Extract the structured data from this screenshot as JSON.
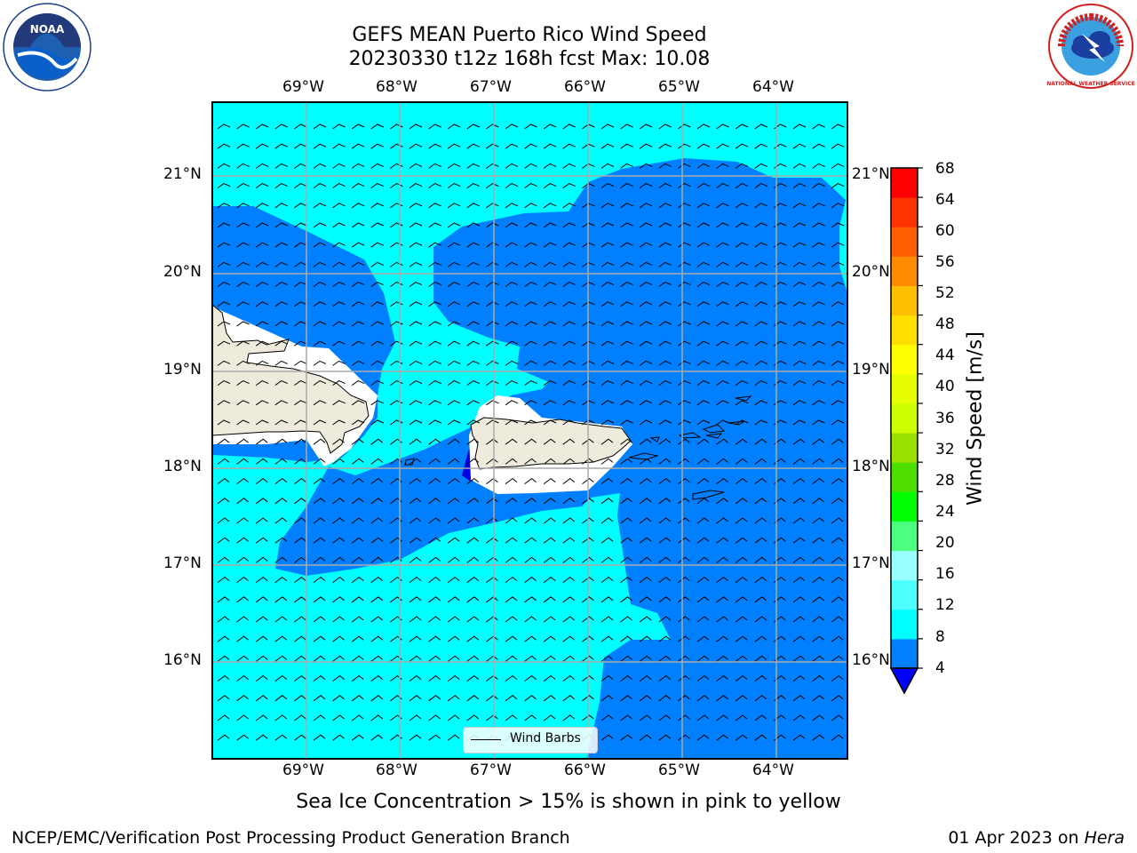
{
  "title": {
    "line1": "GEFS MEAN Puerto Rico Wind Speed",
    "line2": "20230330 t12z 168h fcst   Max: 10.08"
  },
  "logos": {
    "left": {
      "icon": "noaa-logo",
      "text": "NOAA"
    },
    "right": {
      "icon": "nws-logo",
      "text": "NATIONAL WEATHER SERVICE"
    }
  },
  "map": {
    "lon_ticks": [
      "69°W",
      "68°W",
      "67°W",
      "66°W",
      "65°W",
      "64°W"
    ],
    "lat_ticks": [
      "21°N",
      "20°N",
      "19°N",
      "18°N",
      "17°N",
      "16°N"
    ],
    "legend_label": "Wind Barbs",
    "colors": {
      "land": "#efebdc",
      "shade_4_8": "#0080ff",
      "shade_8_12": "#00ffff",
      "shade_below_4": "#0000e6"
    }
  },
  "colorbar": {
    "label": "Wind Speed [m/s]",
    "ticks": [
      "68",
      "64",
      "60",
      "56",
      "52",
      "48",
      "44",
      "40",
      "36",
      "32",
      "28",
      "24",
      "20",
      "16",
      "12",
      "8",
      "4"
    ],
    "colors_bottom_to_top": [
      "#0080ff",
      "#00ffff",
      "#4dffff",
      "#99ffff",
      "#4dff80",
      "#00ff00",
      "#4ddf00",
      "#99df00",
      "#ccff00",
      "#e5ff00",
      "#ffff00",
      "#ffdf00",
      "#ffbf00",
      "#ff8c00",
      "#ff5f00",
      "#ff3300",
      "#ff0000"
    ],
    "under_color": "#0000ff"
  },
  "notes": {
    "subtitle": "Sea Ice Concentration > 15% is shown in pink to yellow",
    "footer_left": "NCEP/EMC/Verification Post Processing Product Generation Branch",
    "footer_date": "01 Apr 2023 on ",
    "footer_machine": "Hera"
  }
}
